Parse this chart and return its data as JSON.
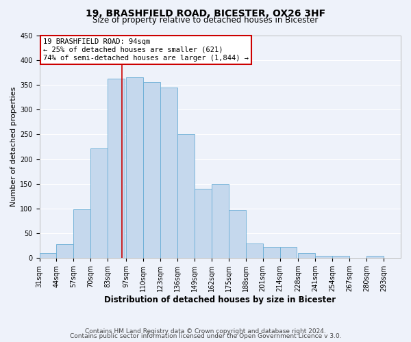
{
  "title": "19, BRASHFIELD ROAD, BICESTER, OX26 3HF",
  "subtitle": "Size of property relative to detached houses in Bicester",
  "xlabel": "Distribution of detached houses by size in Bicester",
  "ylabel": "Number of detached properties",
  "bar_color": "#c5d8ed",
  "bar_edge_color": "#6aaed6",
  "background_color": "#eef2fa",
  "grid_color": "#ffffff",
  "bin_labels": [
    "31sqm",
    "44sqm",
    "57sqm",
    "70sqm",
    "83sqm",
    "97sqm",
    "110sqm",
    "123sqm",
    "136sqm",
    "149sqm",
    "162sqm",
    "175sqm",
    "188sqm",
    "201sqm",
    "214sqm",
    "228sqm",
    "241sqm",
    "254sqm",
    "267sqm",
    "280sqm",
    "293sqm"
  ],
  "bin_edges": [
    31,
    44,
    57,
    70,
    83,
    97,
    110,
    123,
    136,
    149,
    162,
    175,
    188,
    201,
    214,
    228,
    241,
    254,
    267,
    280,
    293
  ],
  "bar_heights": [
    10,
    28,
    98,
    222,
    362,
    365,
    355,
    345,
    250,
    140,
    150,
    97,
    30,
    22,
    23,
    10,
    5,
    5,
    0,
    5
  ],
  "ylim": [
    0,
    450
  ],
  "yticks": [
    0,
    50,
    100,
    150,
    200,
    250,
    300,
    350,
    400,
    450
  ],
  "property_value": 94,
  "vline_color": "#cc0000",
  "annotation_line1": "19 BRASHFIELD ROAD: 94sqm",
  "annotation_line2": "← 25% of detached houses are smaller (621)",
  "annotation_line3": "74% of semi-detached houses are larger (1,844) →",
  "annotation_box_edge_color": "#cc0000",
  "annotation_fontsize": 7.5,
  "footer_line1": "Contains HM Land Registry data © Crown copyright and database right 2024.",
  "footer_line2": "Contains public sector information licensed under the Open Government Licence v 3.0.",
  "footer_fontsize": 6.5,
  "title_fontsize": 10,
  "subtitle_fontsize": 8.5,
  "xlabel_fontsize": 8.5,
  "ylabel_fontsize": 8,
  "tick_fontsize": 7
}
